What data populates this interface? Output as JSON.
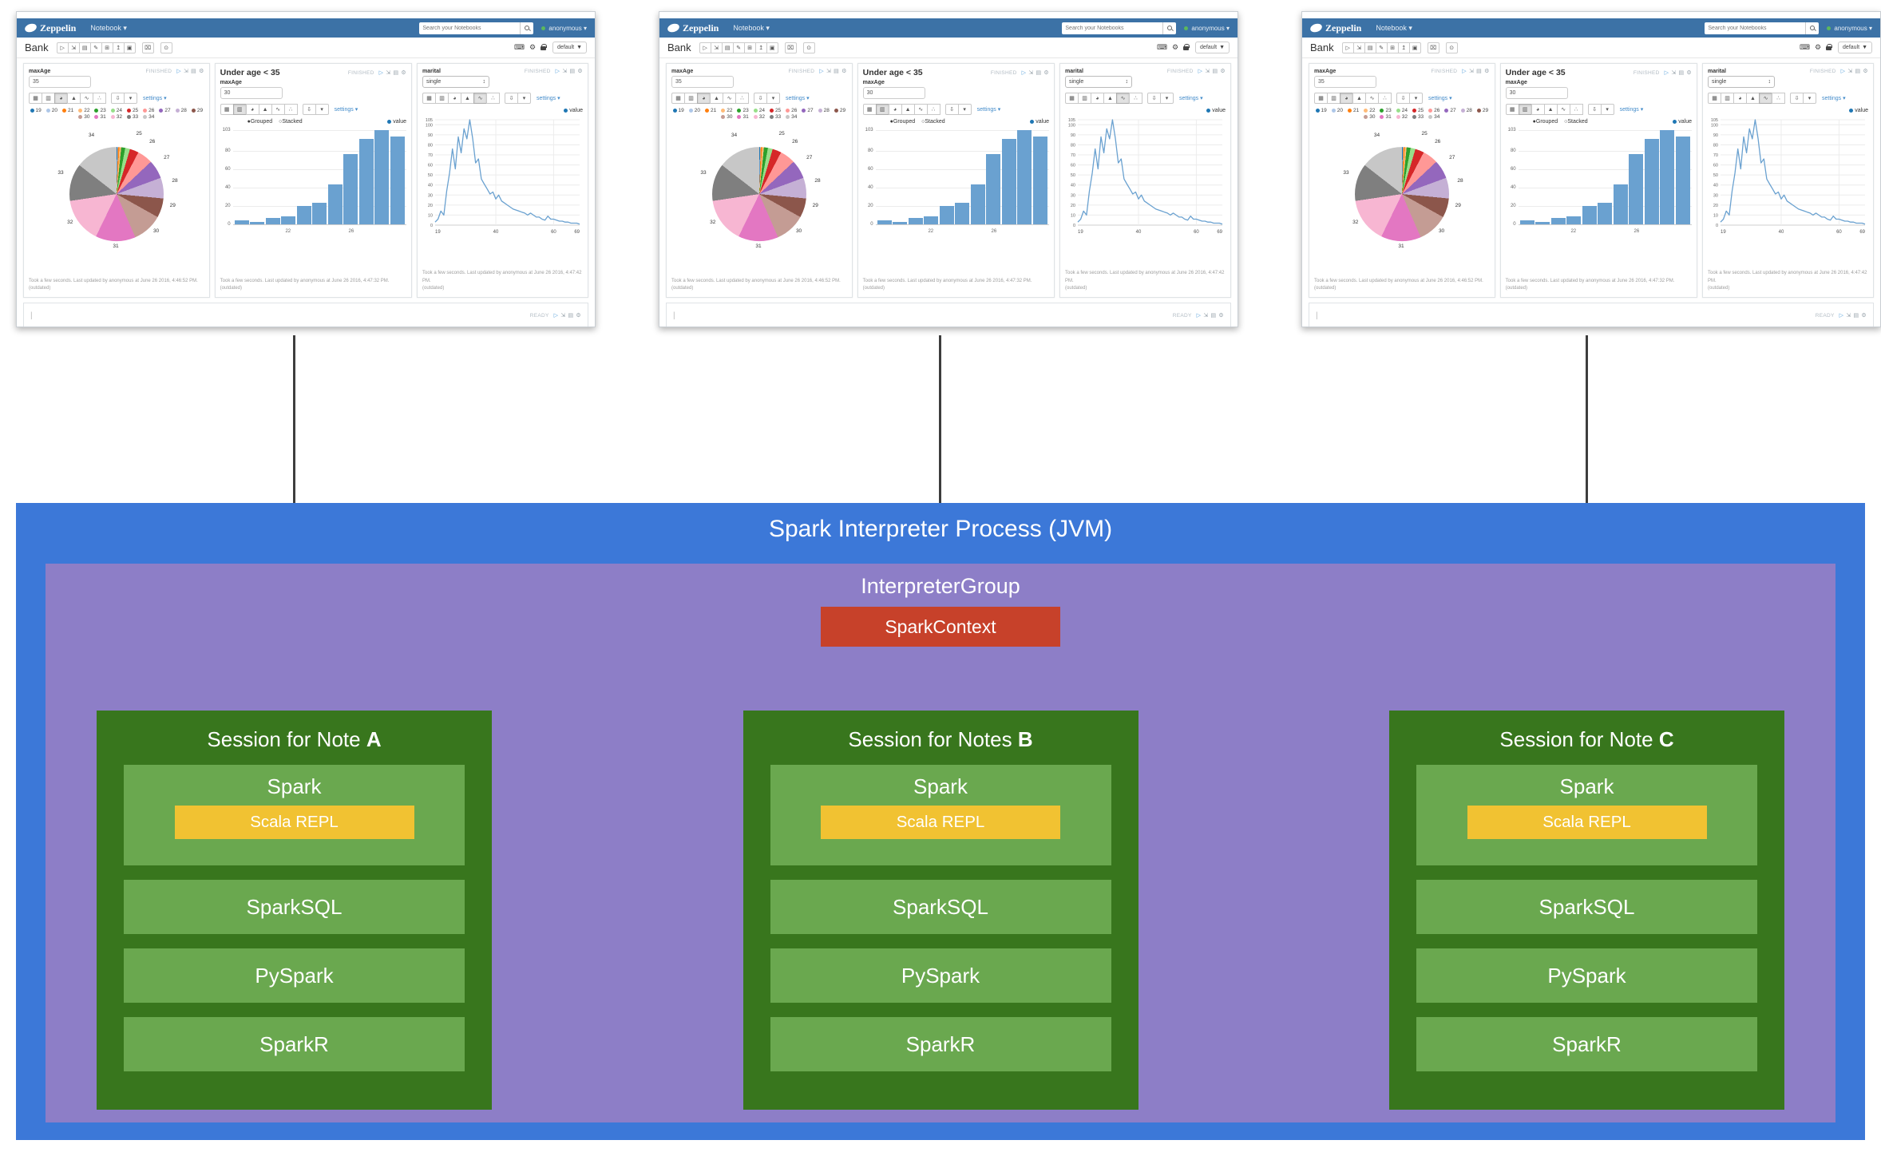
{
  "diagram": {
    "title": "Spark Interpreter Process (JVM)",
    "group_label": "InterpreterGroup",
    "context_label": "SparkContext",
    "colors": {
      "process_bg": "#3c78d8",
      "group_bg": "#8d7ec7",
      "context_bg": "#c7412a",
      "session_bg": "#38761d",
      "item_bg": "#6aa84f",
      "repl_bg": "#f1c232"
    },
    "sessions": [
      {
        "title": "Session for Note",
        "note": "A"
      },
      {
        "title": "Session for Notes",
        "note": "B"
      },
      {
        "title": "Session for Note",
        "note": "C"
      }
    ],
    "session_items": {
      "spark": "Spark",
      "scala_repl": "Scala REPL",
      "others": [
        "SparkSQL",
        "PySpark",
        "SparkR"
      ]
    }
  },
  "screenshot": {
    "navbar": {
      "brand": "Zeppelin",
      "menu": "Notebook",
      "menu_caret": "▾",
      "search_placeholder": "Search your Notebooks",
      "user": "anonymous",
      "user_caret": "▾"
    },
    "note_bar": {
      "title": "Bank",
      "buttons": [
        {
          "name": "run-all-paragraphs-button",
          "glyph": "▷"
        },
        {
          "name": "show-hide-code-button",
          "glyph": "⇲"
        },
        {
          "name": "show-hide-output-button",
          "glyph": "▤"
        },
        {
          "name": "clear-output-button",
          "glyph": "✎"
        },
        {
          "name": "clone-note-button",
          "glyph": "⊞"
        },
        {
          "name": "export-note-button",
          "glyph": "↥"
        },
        {
          "name": "version-control-button",
          "glyph": "▣"
        }
      ],
      "trash_glyph": "⌧",
      "schedule_glyph": "⊙",
      "interpreter_button": "default",
      "interpreter_caret": "▼"
    },
    "chart_toolbar": {
      "icons": [
        {
          "name": "table-icon",
          "glyph": "▦"
        },
        {
          "name": "bar-chart-icon",
          "glyph": "▥"
        },
        {
          "name": "pie-chart-icon",
          "glyph": "◕"
        },
        {
          "name": "area-chart-icon",
          "glyph": "▲"
        },
        {
          "name": "line-chart-icon",
          "glyph": "∿"
        },
        {
          "name": "scatter-chart-icon",
          "glyph": "∴"
        }
      ],
      "download_glyph": "⇩",
      "caret": "▾",
      "settings_label": "settings",
      "settings_caret": "▾"
    },
    "status_icons": [
      {
        "name": "run-paragraph-icon",
        "glyph": "▷"
      },
      {
        "name": "fullscreen-icon",
        "glyph": "⇲"
      },
      {
        "name": "show-editor-icon",
        "glyph": "▤"
      },
      {
        "name": "paragraph-gear-icon",
        "glyph": "⚙"
      }
    ],
    "paragraphs": {
      "p1": {
        "status": "FINISHED",
        "form_label": "maxAge",
        "form_value": "35",
        "footer1": "Took a few seconds. Last updated by anonymous at June 26 2016, 4:46:52 PM.",
        "footer2": "(outdated)"
      },
      "p2": {
        "status": "FINISHED",
        "title": "Under age < 35",
        "form_label": "maxAge",
        "form_value": "30",
        "grouped_label": "Grouped",
        "stacked_label": "Stacked",
        "grouped_dot": "●",
        "stacked_dot": "○",
        "series_label": "value",
        "footer1": "Took a few seconds. Last updated by anonymous at June 26 2016, 4:47:32 PM.",
        "footer2": "(outdated)"
      },
      "p3": {
        "status": "FINISHED",
        "form_label": "marital",
        "form_value": "single",
        "select_glyph": "↕",
        "series_label": "value",
        "footer1": "Took a few seconds. Last updated by anonymous at June 26 2016, 4:47:42 PM.",
        "footer2": "(outdated)"
      }
    },
    "empty_paragraph": {
      "status": "READY",
      "cursor": "|"
    }
  },
  "chart_data": [
    {
      "type": "pie",
      "paragraph": "maxAge",
      "categories": [
        "19",
        "20",
        "21",
        "22",
        "23",
        "24",
        "25",
        "26",
        "27",
        "28",
        "29",
        "30",
        "31",
        "32",
        "33",
        "34"
      ],
      "values": [
        4,
        3,
        7,
        9,
        20,
        24,
        44,
        77,
        93,
        103,
        96,
        150,
        199,
        224,
        186,
        210
      ],
      "colors": [
        "#1f77b4",
        "#aec7e8",
        "#ff7f0e",
        "#ffbb78",
        "#2ca02c",
        "#98df8a",
        "#d62728",
        "#ff9896",
        "#9467bd",
        "#c5b0d5",
        "#8c564b",
        "#c49c94",
        "#e377c2",
        "#f7b6d2",
        "#7f7f7f",
        "#c7c7c7"
      ],
      "legend_position": "top",
      "min_label_fraction": 0.025
    },
    {
      "type": "bar",
      "paragraph": "Under age < 35",
      "categories": [
        "19",
        "20",
        "21",
        "22",
        "23",
        "24",
        "25",
        "26",
        "27",
        "28",
        "29"
      ],
      "values": [
        4,
        3,
        7,
        9,
        20,
        24,
        44,
        77,
        93,
        103,
        96
      ],
      "series": "value",
      "color": "#6aa1d0",
      "ylim": [
        0,
        103
      ],
      "yticks": [
        0,
        20,
        40,
        60,
        80,
        103
      ],
      "xticks": [
        {
          "label": "22",
          "index": 3
        },
        {
          "label": "26",
          "index": 7
        }
      ],
      "modes": [
        "Grouped",
        "Stacked"
      ],
      "selected_mode": "Grouped"
    },
    {
      "type": "line",
      "paragraph": "marital",
      "x_start": 19,
      "x_end": 69,
      "values": [
        3,
        6,
        14,
        10,
        34,
        52,
        76,
        56,
        88,
        72,
        96,
        86,
        105,
        86,
        62,
        66,
        46,
        41,
        36,
        31,
        33,
        26,
        30,
        24,
        22,
        20,
        18,
        16,
        15,
        14,
        13,
        12,
        10,
        12,
        10,
        8,
        8,
        6,
        5,
        9,
        6,
        6,
        5,
        4,
        4,
        3,
        3,
        2,
        2,
        2,
        1
      ],
      "series": "value",
      "color": "#6aa1d0",
      "ylim": [
        0,
        105
      ],
      "yticks": [
        105,
        100,
        90,
        80,
        70,
        60,
        50,
        40,
        30,
        20,
        10,
        0
      ],
      "xticks": [
        19,
        40,
        60,
        69
      ]
    }
  ]
}
